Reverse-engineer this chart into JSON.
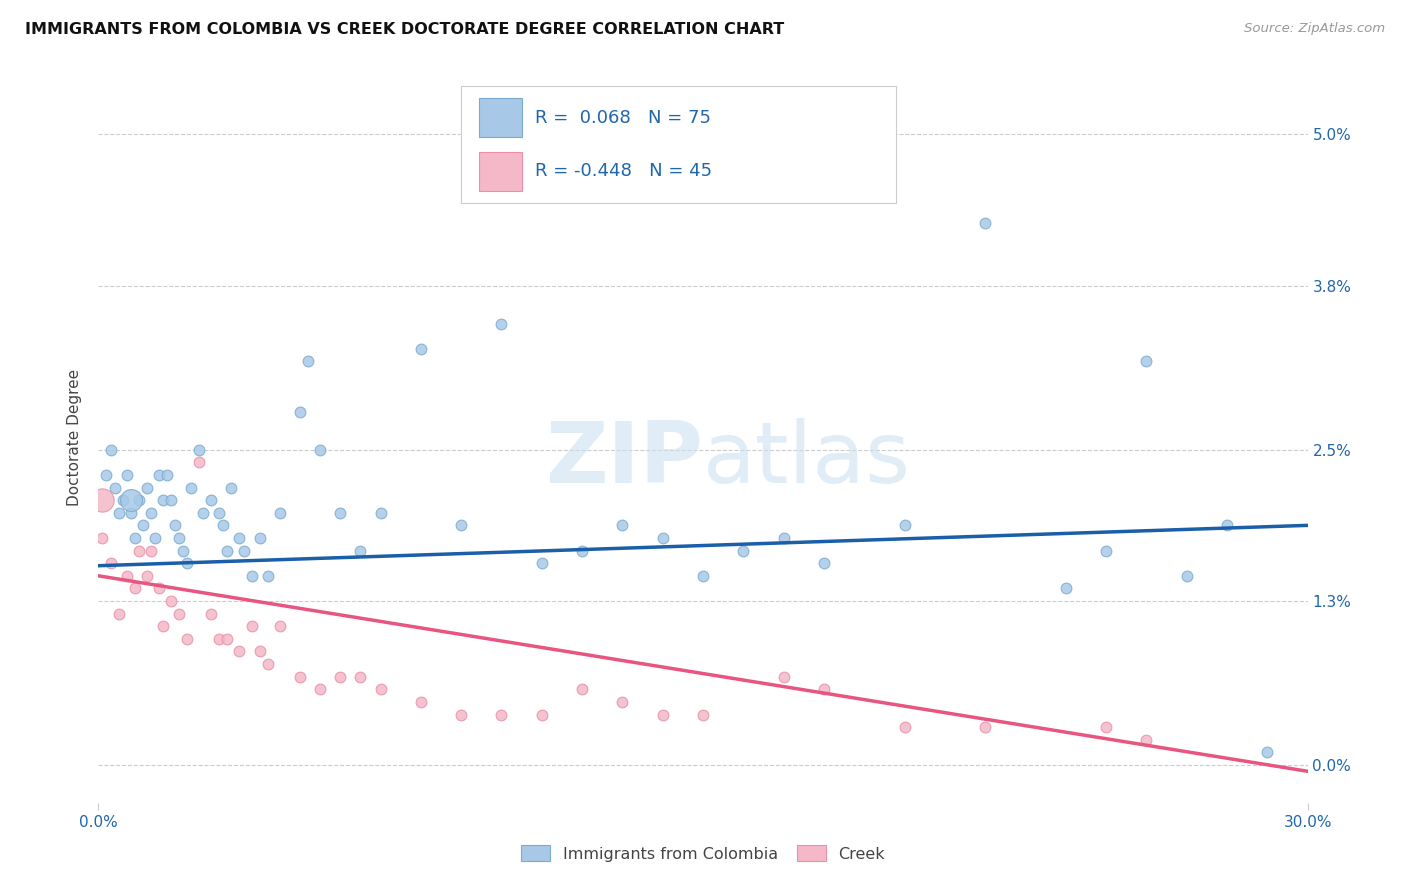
{
  "title": "IMMIGRANTS FROM COLOMBIA VS CREEK DOCTORATE DEGREE CORRELATION CHART",
  "source": "Source: ZipAtlas.com",
  "ylabel": "Doctorate Degree",
  "ytick_vals": [
    0.0,
    1.3,
    2.5,
    3.8,
    5.0
  ],
  "ytick_labels": [
    "0.0%",
    "1.3%",
    "2.5%",
    "3.8%",
    "5.0%"
  ],
  "xlim": [
    0.0,
    30.0
  ],
  "ylim": [
    -0.3,
    5.5
  ],
  "color_blue": "#a8c8e8",
  "color_blue_edge": "#7aabcf",
  "color_pink": "#f4b8c8",
  "color_pink_edge": "#e890a8",
  "color_blue_line": "#1a5fa8",
  "color_pink_line": "#e85580",
  "color_text_blue": "#2166ac",
  "color_grid": "#cccccc",
  "watermark_color": "#cce0f0",
  "legend_r1": "R =  0.068",
  "legend_n1": "N = 75",
  "legend_r2": "R = -0.448",
  "legend_n2": "N = 45",
  "blue_line_x0": 0.0,
  "blue_line_x1": 30.0,
  "blue_line_y0": 1.58,
  "blue_line_y1": 1.9,
  "pink_line_x0": 0.0,
  "pink_line_x1": 30.0,
  "pink_line_y0": 1.5,
  "pink_line_y1": -0.05,
  "blue_x": [
    0.2,
    0.3,
    0.4,
    0.5,
    0.6,
    0.7,
    0.8,
    0.9,
    1.0,
    1.1,
    1.2,
    1.3,
    1.4,
    1.5,
    1.6,
    1.7,
    1.8,
    1.9,
    2.0,
    2.1,
    2.2,
    2.3,
    2.5,
    2.6,
    2.8,
    3.0,
    3.1,
    3.2,
    3.3,
    3.5,
    3.6,
    3.8,
    4.0,
    4.2,
    4.5,
    5.0,
    5.2,
    5.5,
    6.0,
    6.5,
    7.0,
    8.0,
    9.0,
    10.0,
    11.0,
    12.0,
    13.0,
    14.0,
    15.0,
    16.0,
    17.0,
    18.0,
    20.0,
    22.0,
    24.0,
    25.0,
    26.0,
    27.0,
    28.0,
    29.0
  ],
  "blue_y": [
    2.3,
    2.5,
    2.2,
    2.0,
    2.1,
    2.3,
    2.0,
    1.8,
    2.1,
    1.9,
    2.2,
    2.0,
    1.8,
    2.3,
    2.1,
    2.3,
    2.1,
    1.9,
    1.8,
    1.7,
    1.6,
    2.2,
    2.5,
    2.0,
    2.1,
    2.0,
    1.9,
    1.7,
    2.2,
    1.8,
    1.7,
    1.5,
    1.8,
    1.5,
    2.0,
    2.8,
    3.2,
    2.5,
    2.0,
    1.7,
    2.0,
    3.3,
    1.9,
    3.5,
    1.6,
    1.7,
    1.9,
    1.8,
    1.5,
    1.7,
    1.8,
    1.6,
    1.9,
    4.3,
    1.4,
    1.7,
    3.2,
    1.5,
    1.9,
    0.1
  ],
  "blue_size": 60,
  "blue_large_x": [
    0.8
  ],
  "blue_large_y": [
    2.1
  ],
  "blue_large_size": 250,
  "pink_x": [
    0.1,
    0.3,
    0.5,
    0.7,
    0.9,
    1.0,
    1.2,
    1.3,
    1.5,
    1.6,
    1.8,
    2.0,
    2.2,
    2.5,
    2.8,
    3.0,
    3.2,
    3.5,
    3.8,
    4.0,
    4.2,
    4.5,
    5.0,
    5.5,
    6.0,
    6.5,
    7.0,
    8.0,
    9.0,
    10.0,
    11.0,
    12.0,
    13.0,
    14.0,
    15.0,
    17.0,
    18.0,
    20.0,
    22.0,
    25.0,
    26.0
  ],
  "pink_y": [
    1.8,
    1.6,
    1.2,
    1.5,
    1.4,
    1.7,
    1.5,
    1.7,
    1.4,
    1.1,
    1.3,
    1.2,
    1.0,
    2.4,
    1.2,
    1.0,
    1.0,
    0.9,
    1.1,
    0.9,
    0.8,
    1.1,
    0.7,
    0.6,
    0.7,
    0.7,
    0.6,
    0.5,
    0.4,
    0.4,
    0.4,
    0.6,
    0.5,
    0.4,
    0.4,
    0.7,
    0.6,
    0.3,
    0.3,
    0.3,
    0.2
  ],
  "pink_size": 60,
  "pink_large_x": [
    0.1
  ],
  "pink_large_y": [
    2.1
  ],
  "pink_large_size": 280
}
